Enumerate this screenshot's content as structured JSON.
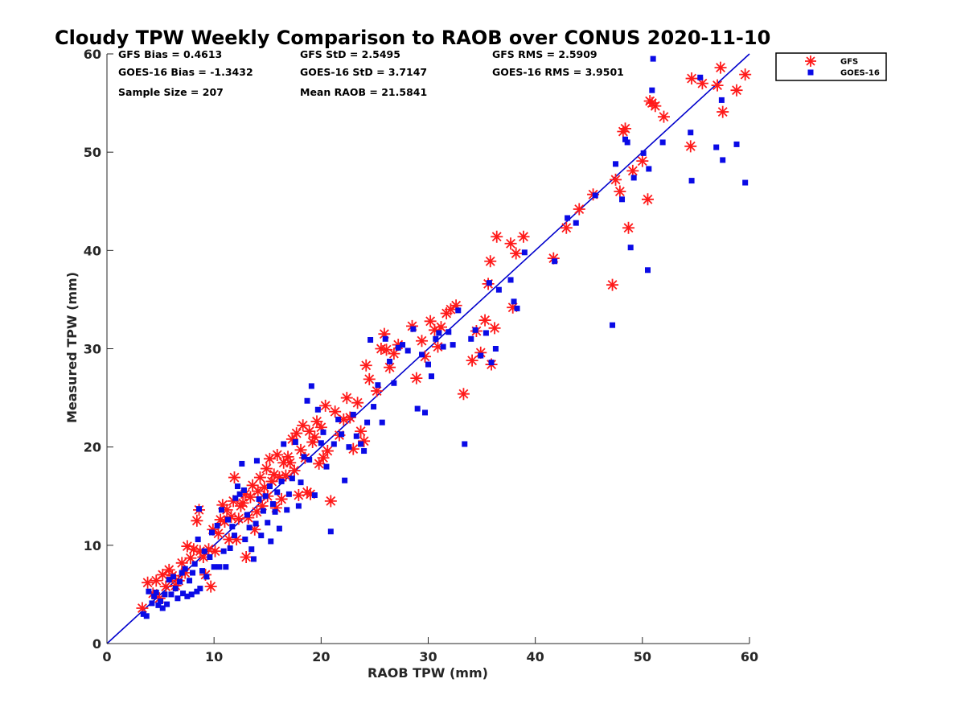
{
  "chart_data": {
    "type": "scatter",
    "title": "Cloudy TPW Weekly Comparison to RAOB over CONUS 2020-11-10",
    "xlabel": "RAOB TPW (mm)",
    "ylabel": "Measured TPW (mm)",
    "xlim": [
      0,
      60
    ],
    "ylim": [
      0,
      60
    ],
    "xticks": [
      0,
      10,
      20,
      30,
      40,
      50,
      60
    ],
    "yticks": [
      0,
      10,
      20,
      30,
      40,
      50,
      60
    ],
    "xtick_labels": [
      "0",
      "10",
      "20",
      "30",
      "40",
      "50",
      "60"
    ],
    "ytick_labels": [
      "0",
      "10",
      "20",
      "30",
      "40",
      "50",
      "60"
    ],
    "grid": false,
    "legend_position": "outside top-right",
    "reference_line": {
      "x": [
        0,
        60
      ],
      "y": [
        0,
        60
      ],
      "color": "#0000cc"
    },
    "stats": [
      [
        "GFS Bias = 0.4613",
        "GFS StD = 2.5495",
        "GFS RMS = 2.5909"
      ],
      [
        "GOES-16 Bias = -1.3432",
        "GOES-16 StD = 3.7147",
        "GOES-16 RMS = 3.9501"
      ],
      [
        "Sample Size = 207",
        "Mean RAOB = 21.5841",
        ""
      ]
    ],
    "series": [
      {
        "name": "GFS",
        "marker": "asterisk",
        "color": "#ff1a1a",
        "points": [
          [
            3.3,
            3.6
          ],
          [
            3.8,
            6.2
          ],
          [
            4.3,
            5.1
          ],
          [
            4.6,
            6.4
          ],
          [
            4.9,
            4.6
          ],
          [
            5.2,
            7.0
          ],
          [
            5.5,
            5.8
          ],
          [
            5.8,
            7.5
          ],
          [
            6.1,
            6.9
          ],
          [
            6.4,
            5.9
          ],
          [
            6.7,
            6.4
          ],
          [
            7.0,
            8.2
          ],
          [
            7.3,
            7.2
          ],
          [
            7.5,
            9.9
          ],
          [
            7.8,
            8.7
          ],
          [
            8.1,
            9.6
          ],
          [
            8.4,
            12.5
          ],
          [
            8.6,
            13.6
          ],
          [
            8.7,
            9.4
          ],
          [
            9.0,
            8.8
          ],
          [
            9.2,
            7.0
          ],
          [
            9.5,
            9.6
          ],
          [
            9.7,
            5.8
          ],
          [
            9.9,
            11.6
          ],
          [
            10.1,
            9.4
          ],
          [
            10.4,
            11.2
          ],
          [
            10.6,
            12.6
          ],
          [
            10.8,
            14.1
          ],
          [
            11.0,
            12.4
          ],
          [
            11.2,
            13.6
          ],
          [
            11.4,
            10.6
          ],
          [
            11.6,
            12.9
          ],
          [
            11.8,
            14.5
          ],
          [
            11.9,
            16.9
          ],
          [
            12.1,
            10.6
          ],
          [
            12.3,
            12.7
          ],
          [
            12.5,
            14.0
          ],
          [
            12.7,
            14.3
          ],
          [
            12.9,
            15.2
          ],
          [
            13.0,
            8.8
          ],
          [
            13.2,
            12.8
          ],
          [
            13.4,
            14.9
          ],
          [
            13.6,
            16.1
          ],
          [
            13.8,
            11.6
          ],
          [
            14.0,
            13.4
          ],
          [
            14.1,
            15.5
          ],
          [
            14.3,
            16.9
          ],
          [
            14.5,
            14.0
          ],
          [
            14.7,
            15.9
          ],
          [
            14.9,
            17.8
          ],
          [
            15.0,
            15.0
          ],
          [
            15.2,
            18.8
          ],
          [
            15.4,
            16.5
          ],
          [
            15.6,
            17.2
          ],
          [
            15.8,
            13.8
          ],
          [
            15.9,
            19.2
          ],
          [
            16.1,
            16.9
          ],
          [
            16.3,
            14.7
          ],
          [
            16.5,
            18.4
          ],
          [
            16.7,
            17.1
          ],
          [
            16.9,
            19.0
          ],
          [
            17.1,
            18.4
          ],
          [
            17.3,
            20.8
          ],
          [
            17.5,
            17.6
          ],
          [
            17.7,
            21.4
          ],
          [
            17.9,
            15.1
          ],
          [
            18.1,
            19.7
          ],
          [
            18.3,
            22.2
          ],
          [
            18.5,
            18.9
          ],
          [
            18.7,
            15.4
          ],
          [
            18.9,
            21.6
          ],
          [
            19.0,
            15.2
          ],
          [
            19.2,
            20.5
          ],
          [
            19.4,
            21.0
          ],
          [
            19.6,
            22.6
          ],
          [
            19.8,
            18.3
          ],
          [
            20.0,
            22.0
          ],
          [
            20.2,
            18.9
          ],
          [
            20.4,
            24.2
          ],
          [
            20.6,
            19.6
          ],
          [
            20.9,
            14.5
          ],
          [
            21.3,
            23.6
          ],
          [
            21.7,
            21.2
          ],
          [
            22.1,
            22.8
          ],
          [
            22.4,
            25.0
          ],
          [
            22.7,
            23.0
          ],
          [
            23.0,
            19.8
          ],
          [
            23.4,
            24.5
          ],
          [
            23.7,
            21.6
          ],
          [
            24.0,
            20.6
          ],
          [
            24.2,
            28.3
          ],
          [
            24.5,
            26.9
          ],
          [
            25.2,
            25.7
          ],
          [
            25.6,
            30.0
          ],
          [
            25.9,
            31.5
          ],
          [
            26.1,
            29.9
          ],
          [
            26.4,
            28.1
          ],
          [
            26.8,
            29.5
          ],
          [
            27.2,
            30.4
          ],
          [
            28.5,
            32.3
          ],
          [
            28.9,
            27.0
          ],
          [
            29.4,
            30.8
          ],
          [
            29.7,
            29.2
          ],
          [
            30.2,
            32.8
          ],
          [
            30.6,
            31.9
          ],
          [
            30.9,
            30.2
          ],
          [
            31.2,
            32.2
          ],
          [
            31.7,
            33.6
          ],
          [
            32.1,
            34.0
          ],
          [
            32.6,
            34.4
          ],
          [
            33.3,
            25.4
          ],
          [
            34.1,
            28.8
          ],
          [
            34.5,
            31.8
          ],
          [
            34.9,
            29.6
          ],
          [
            35.3,
            32.9
          ],
          [
            35.6,
            36.6
          ],
          [
            35.8,
            38.9
          ],
          [
            35.9,
            28.4
          ],
          [
            36.2,
            32.1
          ],
          [
            36.4,
            41.4
          ],
          [
            37.7,
            40.7
          ],
          [
            37.9,
            34.2
          ],
          [
            38.2,
            39.7
          ],
          [
            38.9,
            41.4
          ],
          [
            41.7,
            39.2
          ],
          [
            42.9,
            42.3
          ],
          [
            44.1,
            44.2
          ],
          [
            45.4,
            45.7
          ],
          [
            47.2,
            36.5
          ],
          [
            47.5,
            47.2
          ],
          [
            47.9,
            46.0
          ],
          [
            48.2,
            52.1
          ],
          [
            48.4,
            52.4
          ],
          [
            48.7,
            42.3
          ],
          [
            49.1,
            48.1
          ],
          [
            50.0,
            49.1
          ],
          [
            50.5,
            45.2
          ],
          [
            50.7,
            55.2
          ],
          [
            50.9,
            55.0
          ],
          [
            51.2,
            54.7
          ],
          [
            52.0,
            53.6
          ],
          [
            54.5,
            50.6
          ],
          [
            54.6,
            57.5
          ],
          [
            55.6,
            57.0
          ],
          [
            57.0,
            56.8
          ],
          [
            57.3,
            58.6
          ],
          [
            57.5,
            54.1
          ],
          [
            58.8,
            56.3
          ],
          [
            59.6,
            57.9
          ]
        ]
      },
      {
        "name": "GOES-16",
        "marker": "square",
        "color": "#0a0ae6",
        "points": [
          [
            3.4,
            3.0
          ],
          [
            3.7,
            2.8
          ],
          [
            3.9,
            5.3
          ],
          [
            4.2,
            4.1
          ],
          [
            4.4,
            4.8
          ],
          [
            4.6,
            5.2
          ],
          [
            4.8,
            3.9
          ],
          [
            5.0,
            4.3
          ],
          [
            5.2,
            3.6
          ],
          [
            5.4,
            5.0
          ],
          [
            5.6,
            4.0
          ],
          [
            5.8,
            6.5
          ],
          [
            6.0,
            5.0
          ],
          [
            6.2,
            6.8
          ],
          [
            6.4,
            5.6
          ],
          [
            6.6,
            4.6
          ],
          [
            6.8,
            6.3
          ],
          [
            7.0,
            7.2
          ],
          [
            7.1,
            5.1
          ],
          [
            7.3,
            7.6
          ],
          [
            7.5,
            4.8
          ],
          [
            7.7,
            6.4
          ],
          [
            7.9,
            5.0
          ],
          [
            8.0,
            7.2
          ],
          [
            8.2,
            8.1
          ],
          [
            8.4,
            5.3
          ],
          [
            8.5,
            10.6
          ],
          [
            8.6,
            13.7
          ],
          [
            8.7,
            5.6
          ],
          [
            8.9,
            7.4
          ],
          [
            9.1,
            9.4
          ],
          [
            9.3,
            6.8
          ],
          [
            9.6,
            8.8
          ],
          [
            9.8,
            11.3
          ],
          [
            10.0,
            7.8
          ],
          [
            10.3,
            12.0
          ],
          [
            10.5,
            7.8
          ],
          [
            10.7,
            13.6
          ],
          [
            10.9,
            9.4
          ],
          [
            11.1,
            7.8
          ],
          [
            11.3,
            12.6
          ],
          [
            11.5,
            9.7
          ],
          [
            11.7,
            11.9
          ],
          [
            11.9,
            11.0
          ],
          [
            12.0,
            14.8
          ],
          [
            12.2,
            16.0
          ],
          [
            12.4,
            15.2
          ],
          [
            12.6,
            18.3
          ],
          [
            12.8,
            15.6
          ],
          [
            12.9,
            10.6
          ],
          [
            13.1,
            13.1
          ],
          [
            13.3,
            11.8
          ],
          [
            13.5,
            9.6
          ],
          [
            13.7,
            8.6
          ],
          [
            13.9,
            12.2
          ],
          [
            14.0,
            18.6
          ],
          [
            14.2,
            14.7
          ],
          [
            14.4,
            11.0
          ],
          [
            14.6,
            13.5
          ],
          [
            14.8,
            15.0
          ],
          [
            15.0,
            12.3
          ],
          [
            15.2,
            16.0
          ],
          [
            15.3,
            10.4
          ],
          [
            15.5,
            14.2
          ],
          [
            15.7,
            13.4
          ],
          [
            15.9,
            15.4
          ],
          [
            16.1,
            11.7
          ],
          [
            16.3,
            16.5
          ],
          [
            16.5,
            20.3
          ],
          [
            16.8,
            13.6
          ],
          [
            17.0,
            15.2
          ],
          [
            17.3,
            16.8
          ],
          [
            17.6,
            20.5
          ],
          [
            17.9,
            14.0
          ],
          [
            18.1,
            16.4
          ],
          [
            18.4,
            19.0
          ],
          [
            18.7,
            24.7
          ],
          [
            18.9,
            18.7
          ],
          [
            19.1,
            26.2
          ],
          [
            19.4,
            15.1
          ],
          [
            19.7,
            23.8
          ],
          [
            20.0,
            20.4
          ],
          [
            20.2,
            21.5
          ],
          [
            20.5,
            18.0
          ],
          [
            20.9,
            11.4
          ],
          [
            21.2,
            20.3
          ],
          [
            21.6,
            22.8
          ],
          [
            21.9,
            21.3
          ],
          [
            22.2,
            16.6
          ],
          [
            22.6,
            20.0
          ],
          [
            23.0,
            23.3
          ],
          [
            23.3,
            21.1
          ],
          [
            23.7,
            20.3
          ],
          [
            24.0,
            19.6
          ],
          [
            24.3,
            22.5
          ],
          [
            24.6,
            30.9
          ],
          [
            24.9,
            24.1
          ],
          [
            25.3,
            26.3
          ],
          [
            25.7,
            22.5
          ],
          [
            26.0,
            31.0
          ],
          [
            26.4,
            28.7
          ],
          [
            26.8,
            26.5
          ],
          [
            27.2,
            30.1
          ],
          [
            27.6,
            30.4
          ],
          [
            28.1,
            29.8
          ],
          [
            28.6,
            32.0
          ],
          [
            29.0,
            23.9
          ],
          [
            29.4,
            29.4
          ],
          [
            29.7,
            23.5
          ],
          [
            30.0,
            28.4
          ],
          [
            30.3,
            27.2
          ],
          [
            30.7,
            31.0
          ],
          [
            31.0,
            31.6
          ],
          [
            31.4,
            30.2
          ],
          [
            31.9,
            31.7
          ],
          [
            32.3,
            30.4
          ],
          [
            32.8,
            33.9
          ],
          [
            33.4,
            20.3
          ],
          [
            34.0,
            31.0
          ],
          [
            34.4,
            31.9
          ],
          [
            34.9,
            29.3
          ],
          [
            35.4,
            31.6
          ],
          [
            35.7,
            36.7
          ],
          [
            35.9,
            28.6
          ],
          [
            36.3,
            30.0
          ],
          [
            36.6,
            36.0
          ],
          [
            37.7,
            37.0
          ],
          [
            38.0,
            34.8
          ],
          [
            38.3,
            34.1
          ],
          [
            39.0,
            39.8
          ],
          [
            41.8,
            38.9
          ],
          [
            43.0,
            43.3
          ],
          [
            43.8,
            42.8
          ],
          [
            45.6,
            45.6
          ],
          [
            47.2,
            32.4
          ],
          [
            47.5,
            48.8
          ],
          [
            48.1,
            45.2
          ],
          [
            48.4,
            51.3
          ],
          [
            48.6,
            51.0
          ],
          [
            48.9,
            40.3
          ],
          [
            49.2,
            47.4
          ],
          [
            50.1,
            49.9
          ],
          [
            50.5,
            38.0
          ],
          [
            50.6,
            48.3
          ],
          [
            50.9,
            56.3
          ],
          [
            51.0,
            59.5
          ],
          [
            51.9,
            51.0
          ],
          [
            54.5,
            52.0
          ],
          [
            54.6,
            47.1
          ],
          [
            56.9,
            50.5
          ],
          [
            57.5,
            49.2
          ],
          [
            58.8,
            50.8
          ],
          [
            59.6,
            46.9
          ],
          [
            55.4,
            57.6
          ],
          [
            57.4,
            55.3
          ]
        ]
      }
    ]
  }
}
